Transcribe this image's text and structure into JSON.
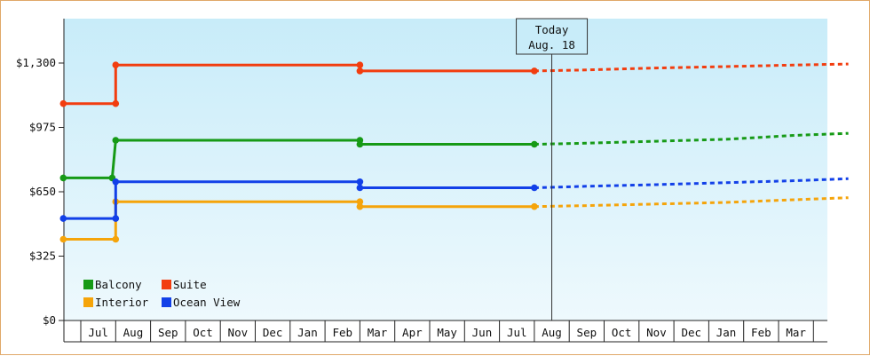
{
  "chart_data": {
    "type": "line",
    "step": true,
    "y_ticks": [
      "$0",
      "$325",
      "$650",
      "$975",
      "$1,300"
    ],
    "ylim": [
      0,
      1300
    ],
    "months": [
      "Jul",
      "Aug",
      "Sep",
      "Oct",
      "Nov",
      "Dec",
      "Jan",
      "Feb",
      "Mar",
      "Apr",
      "May",
      "Jun",
      "Jul",
      "Aug",
      "Sep",
      "Oct",
      "Nov",
      "Dec",
      "Jan",
      "Feb",
      "Mar"
    ],
    "today": {
      "line1": "Today",
      "line2": "Aug. 18",
      "month_index": 13.5
    },
    "grid": false,
    "legend_position": "bottom-left",
    "series": [
      {
        "name": "Balcony",
        "color": "#169a16",
        "actual": [
          [
            0,
            720
          ],
          [
            1.4,
            720
          ],
          [
            1.5,
            910
          ],
          [
            8.5,
            910
          ],
          [
            8.5,
            890
          ],
          [
            13.5,
            890
          ]
        ],
        "forecast": [
          [
            13.5,
            890
          ],
          [
            15,
            895
          ],
          [
            17,
            905
          ],
          [
            19,
            915
          ],
          [
            21,
            935
          ],
          [
            22.5,
            945
          ]
        ]
      },
      {
        "name": "Suite",
        "color": "#f23d0f",
        "actual": [
          [
            0,
            1095
          ],
          [
            1.5,
            1095
          ],
          [
            1.5,
            1290
          ],
          [
            8.5,
            1290
          ],
          [
            8.5,
            1260
          ],
          [
            13.5,
            1260
          ]
        ],
        "forecast": [
          [
            13.5,
            1260
          ],
          [
            15,
            1265
          ],
          [
            17,
            1275
          ],
          [
            19,
            1282
          ],
          [
            21,
            1290
          ],
          [
            22.5,
            1295
          ]
        ]
      },
      {
        "name": "Interior",
        "color": "#f5a40a",
        "actual": [
          [
            0,
            410
          ],
          [
            1.5,
            410
          ],
          [
            1.5,
            600
          ],
          [
            8.5,
            600
          ],
          [
            8.5,
            575
          ],
          [
            13.5,
            575
          ]
        ],
        "forecast": [
          [
            13.5,
            575
          ],
          [
            15,
            580
          ],
          [
            17,
            588
          ],
          [
            19,
            596
          ],
          [
            21,
            610
          ],
          [
            22.5,
            620
          ]
        ]
      },
      {
        "name": "Ocean View",
        "color": "#1240e8",
        "actual": [
          [
            0,
            515
          ],
          [
            1.5,
            515
          ],
          [
            1.5,
            700
          ],
          [
            8.5,
            700
          ],
          [
            8.5,
            670
          ],
          [
            13.5,
            670
          ]
        ],
        "forecast": [
          [
            13.5,
            670
          ],
          [
            15,
            678
          ],
          [
            17,
            686
          ],
          [
            19,
            696
          ],
          [
            21,
            706
          ],
          [
            22.5,
            716
          ]
        ]
      }
    ]
  }
}
